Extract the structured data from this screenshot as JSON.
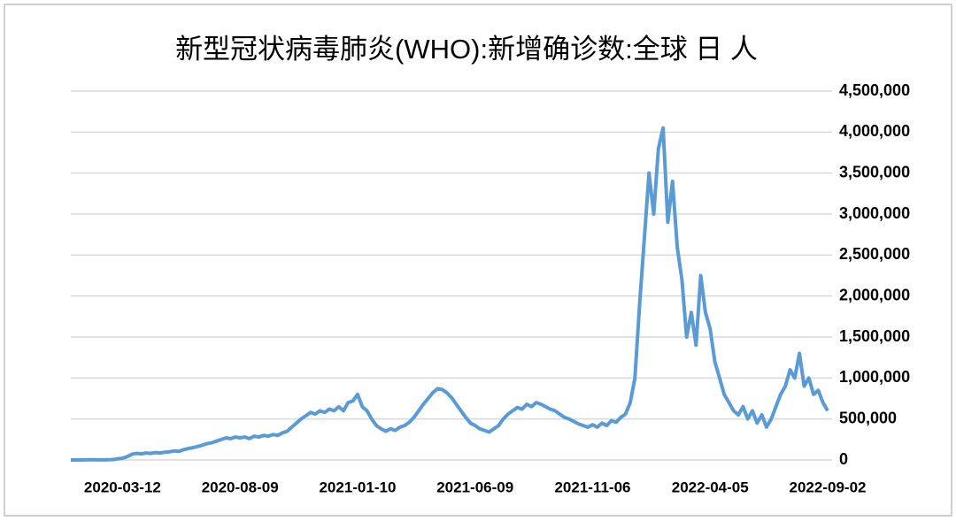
{
  "chart_data": {
    "type": "line",
    "title": "新型冠状病毒肺炎(WHO):新增确诊数:全球 日 人",
    "categories": [
      null,
      null,
      null,
      null,
      null,
      null,
      null,
      null,
      null,
      null,
      null,
      "2020-03-12",
      null,
      null,
      null,
      null,
      null,
      null,
      null,
      null,
      null,
      null,
      null,
      null,
      null,
      null,
      null,
      null,
      null,
      null,
      null,
      null,
      null,
      null,
      null,
      null,
      "2020-08-09",
      null,
      null,
      null,
      null,
      null,
      null,
      null,
      null,
      null,
      null,
      null,
      null,
      null,
      null,
      null,
      null,
      null,
      null,
      null,
      null,
      null,
      null,
      null,
      null,
      "2021-01-10",
      null,
      null,
      null,
      null,
      null,
      null,
      null,
      null,
      null,
      null,
      null,
      null,
      null,
      null,
      null,
      null,
      null,
      null,
      null,
      null,
      null,
      null,
      null,
      null,
      "2021-06-09",
      null,
      null,
      null,
      null,
      null,
      null,
      null,
      null,
      null,
      null,
      null,
      null,
      null,
      null,
      null,
      null,
      null,
      null,
      null,
      null,
      null,
      null,
      null,
      null,
      "2021-11-06",
      null,
      null,
      null,
      null,
      null,
      null,
      null,
      null,
      null,
      null,
      null,
      null,
      null,
      null,
      null,
      null,
      null,
      null,
      null,
      null,
      null,
      null,
      null,
      null,
      "2022-04-05",
      null,
      null,
      null,
      null,
      null,
      null,
      null,
      null,
      null,
      null,
      null,
      null,
      null,
      null,
      null,
      null,
      null,
      null,
      null,
      null,
      null,
      null,
      null,
      null,
      "2022-09-02"
    ],
    "series": [
      {
        "name": "新增确诊数",
        "color": "#5b9bd5",
        "values": [
          0,
          0,
          0,
          1000,
          2000,
          2000,
          1000,
          1000,
          2000,
          5000,
          15000,
          20000,
          40000,
          70000,
          80000,
          75000,
          85000,
          80000,
          90000,
          85000,
          95000,
          100000,
          110000,
          105000,
          125000,
          140000,
          150000,
          165000,
          180000,
          200000,
          210000,
          230000,
          250000,
          270000,
          260000,
          280000,
          270000,
          280000,
          260000,
          290000,
          280000,
          300000,
          290000,
          310000,
          300000,
          330000,
          350000,
          400000,
          450000,
          500000,
          540000,
          580000,
          560000,
          600000,
          580000,
          620000,
          600000,
          650000,
          600000,
          700000,
          720000,
          800000,
          650000,
          600000,
          500000,
          420000,
          380000,
          350000,
          380000,
          360000,
          400000,
          420000,
          460000,
          520000,
          600000,
          680000,
          750000,
          820000,
          870000,
          860000,
          820000,
          760000,
          680000,
          600000,
          520000,
          450000,
          420000,
          380000,
          360000,
          340000,
          380000,
          420000,
          500000,
          560000,
          600000,
          640000,
          620000,
          680000,
          650000,
          700000,
          680000,
          650000,
          620000,
          600000,
          560000,
          520000,
          500000,
          470000,
          440000,
          420000,
          400000,
          430000,
          400000,
          450000,
          420000,
          480000,
          460000,
          520000,
          560000,
          700000,
          1000000,
          1900000,
          2700000,
          3500000,
          3000000,
          3800000,
          4050000,
          2900000,
          3400000,
          2600000,
          2200000,
          1500000,
          1800000,
          1400000,
          2250000,
          1800000,
          1600000,
          1200000,
          1000000,
          800000,
          700000,
          600000,
          550000,
          650000,
          500000,
          600000,
          450000,
          550000,
          400000,
          500000,
          650000,
          800000,
          900000,
          1100000,
          1000000,
          1300000,
          900000,
          1000000,
          800000,
          850000,
          700000,
          600000
        ]
      }
    ],
    "ylim": [
      0,
      4500000
    ],
    "yticks": [
      0,
      {
        "value": 500000,
        "label": "500,000"
      },
      {
        "value": 1000000,
        "label": "1,000,000"
      },
      {
        "value": 1500000,
        "label": "1,500,000"
      },
      {
        "value": 2000000,
        "label": "2,000,000"
      },
      {
        "value": 2500000,
        "label": "2,500,000"
      },
      {
        "value": 3000000,
        "label": "3,000,000"
      },
      {
        "value": 3500000,
        "label": "3,500,000"
      },
      {
        "value": 4000000,
        "label": "4,000,000"
      },
      {
        "value": 4500000,
        "label": "4,500,000"
      }
    ],
    "grid": true
  }
}
